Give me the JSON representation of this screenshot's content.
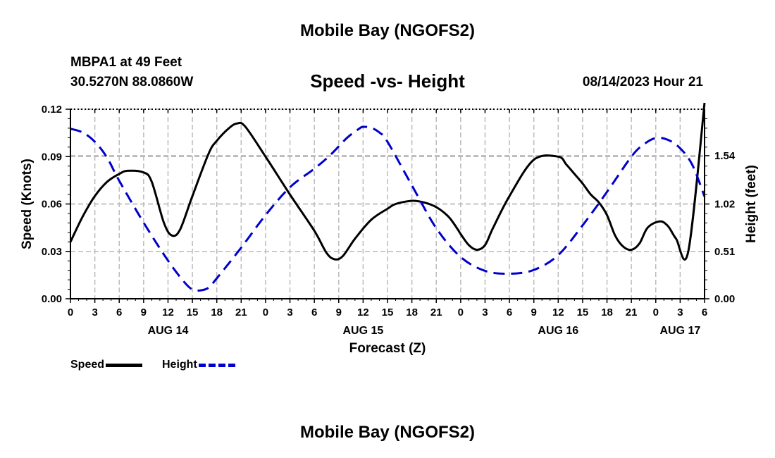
{
  "header": {
    "title": "Mobile Bay (NGOFS2)",
    "station": "MBPA1 at 49 Feet",
    "coords": "30.5270N  88.0860W",
    "subtitle": "Speed -vs- Height",
    "datetime": "08/14/2023 Hour 21"
  },
  "footer": {
    "title": "Mobile Bay (NGOFS2)"
  },
  "colors": {
    "speed": "#000000",
    "height": "#0000cc",
    "grid": "#bbbbbb"
  },
  "chart_data": {
    "type": "line",
    "title": "Speed -vs- Height",
    "xlabel": "Forecast (Z)",
    "ylabel_left": "Speed (Knots)",
    "ylabel_right": "Height (feet)",
    "xlim": [
      0,
      78
    ],
    "ylim_left": [
      0,
      0.12
    ],
    "ylim_right": [
      0,
      2.04
    ],
    "x_ticks": [
      0,
      3,
      6,
      9,
      12,
      15,
      18,
      21,
      24,
      27,
      30,
      33,
      36,
      39,
      42,
      45,
      48,
      51,
      54,
      57,
      60,
      63,
      66,
      69,
      72,
      75,
      78
    ],
    "x_tick_labels": [
      "0",
      "3",
      "6",
      "9",
      "12",
      "15",
      "18",
      "21",
      "0",
      "3",
      "6",
      "9",
      "12",
      "15",
      "18",
      "21",
      "0",
      "3",
      "6",
      "9",
      "12",
      "15",
      "18",
      "21",
      "0",
      "3",
      "6"
    ],
    "day_labels": [
      {
        "x": 12,
        "label": "AUG 14"
      },
      {
        "x": 36,
        "label": "AUG 15"
      },
      {
        "x": 60,
        "label": "AUG 16"
      },
      {
        "x": 75,
        "label": "AUG 17"
      }
    ],
    "y_left_ticks": [
      0,
      0.03,
      0.06,
      0.09,
      0.12
    ],
    "y_left_tick_labels": [
      "0.00",
      "0.03",
      "0.06",
      "0.09",
      "0.12"
    ],
    "y_right_ticks": [
      0,
      0.51,
      1.02,
      1.54
    ],
    "y_right_tick_labels": [
      "0.00",
      "0.51",
      "1.02",
      "1.54"
    ],
    "grid": true,
    "legend": [
      {
        "name": "Speed",
        "style": "solid"
      },
      {
        "name": "Height",
        "style": "dashed"
      }
    ],
    "series": [
      {
        "name": "Speed",
        "axis": "left",
        "style": "solid",
        "x": [
          0,
          1.5,
          3,
          4.5,
          6,
          7,
          9,
          10,
          11.5,
          12.5,
          13.5,
          15,
          17,
          18,
          19.5,
          20.5,
          21.5,
          24,
          27,
          30,
          31.5,
          32.5,
          33.5,
          35,
          37,
          39,
          40,
          42,
          43.5,
          45,
          46.5,
          47.5,
          48,
          49,
          50,
          51,
          52,
          54,
          57,
          60,
          61,
          62,
          63,
          64,
          65,
          66,
          67,
          68,
          69,
          70,
          71,
          72.5,
          73.5,
          74.5,
          76,
          78
        ],
        "y": [
          0.036,
          0.052,
          0.065,
          0.074,
          0.079,
          0.081,
          0.08,
          0.074,
          0.048,
          0.04,
          0.044,
          0.065,
          0.092,
          0.1,
          0.108,
          0.111,
          0.109,
          0.09,
          0.066,
          0.043,
          0.029,
          0.025,
          0.027,
          0.038,
          0.05,
          0.057,
          0.06,
          0.062,
          0.061,
          0.058,
          0.052,
          0.045,
          0.041,
          0.034,
          0.031,
          0.034,
          0.045,
          0.065,
          0.088,
          0.09,
          0.085,
          0.079,
          0.073,
          0.066,
          0.061,
          0.053,
          0.04,
          0.033,
          0.031,
          0.035,
          0.045,
          0.049,
          0.046,
          0.038,
          0.03,
          0.124
        ]
      },
      {
        "name": "Height",
        "axis": "right",
        "style": "dashed",
        "x": [
          0,
          1.5,
          3,
          4.5,
          6,
          9,
          12,
          14,
          15,
          16,
          17,
          18,
          21,
          24,
          27,
          30,
          32,
          34,
          35.5,
          36,
          37,
          38,
          39,
          42,
          45,
          48,
          51,
          54,
          57,
          60,
          63,
          66,
          69,
          70.5,
          72,
          73.5,
          75,
          76.5,
          78
        ],
        "y": [
          1.83,
          1.79,
          1.69,
          1.52,
          1.27,
          0.82,
          0.41,
          0.18,
          0.1,
          0.09,
          0.12,
          0.22,
          0.55,
          0.9,
          1.2,
          1.4,
          1.55,
          1.73,
          1.83,
          1.85,
          1.84,
          1.79,
          1.69,
          1.22,
          0.76,
          0.45,
          0.3,
          0.27,
          0.31,
          0.47,
          0.79,
          1.15,
          1.53,
          1.66,
          1.73,
          1.71,
          1.62,
          1.44,
          1.1
        ]
      }
    ]
  }
}
